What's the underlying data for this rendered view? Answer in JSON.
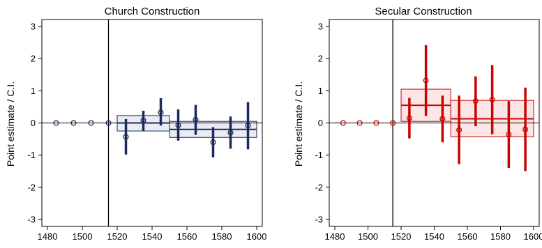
{
  "chart_data": [
    {
      "type": "scatter",
      "title": "Church Construction",
      "ylabel": "Point estimate / C.I.",
      "xlabel": "",
      "xlim": [
        1480,
        1600
      ],
      "ylim": [
        -3,
        3
      ],
      "x_ticks": [
        1480,
        1500,
        1520,
        1540,
        1560,
        1580,
        1600
      ],
      "y_ticks": [
        -3,
        -2,
        -1,
        0,
        1,
        2,
        3
      ],
      "vline": 1515,
      "hline": 0,
      "color": "#1b2a5a",
      "box_fill": "#e9ecf4",
      "points": [
        {
          "x": 1485,
          "y": 0.0,
          "lo": 0.0,
          "hi": 0.0
        },
        {
          "x": 1495,
          "y": 0.0,
          "lo": 0.0,
          "hi": 0.0
        },
        {
          "x": 1505,
          "y": 0.0,
          "lo": 0.0,
          "hi": 0.0
        },
        {
          "x": 1515,
          "y": 0.0,
          "lo": 0.0,
          "hi": 0.0
        },
        {
          "x": 1525,
          "y": -0.43,
          "lo": -0.98,
          "hi": 0.12
        },
        {
          "x": 1535,
          "y": 0.08,
          "lo": -0.25,
          "hi": 0.38
        },
        {
          "x": 1545,
          "y": 0.33,
          "lo": -0.08,
          "hi": 0.77
        },
        {
          "x": 1555,
          "y": -0.07,
          "lo": -0.55,
          "hi": 0.42
        },
        {
          "x": 1565,
          "y": 0.1,
          "lo": -0.37,
          "hi": 0.56
        },
        {
          "x": 1575,
          "y": -0.6,
          "lo": -1.07,
          "hi": -0.13
        },
        {
          "x": 1585,
          "y": -0.3,
          "lo": -0.8,
          "hi": 0.2
        },
        {
          "x": 1595,
          "y": -0.08,
          "lo": -0.82,
          "hi": 0.65
        }
      ],
      "pooled": [
        {
          "x0": 1520,
          "x1": 1550,
          "est": 0.0,
          "lo": -0.25,
          "hi": 0.23
        },
        {
          "x0": 1550,
          "x1": 1600,
          "est": -0.2,
          "lo": -0.45,
          "hi": 0.05
        }
      ]
    },
    {
      "type": "scatter",
      "title": "Secular Construction",
      "ylabel": "Point estimate / C.I.",
      "xlabel": "",
      "xlim": [
        1480,
        1600
      ],
      "ylim": [
        -3,
        3
      ],
      "x_ticks": [
        1480,
        1500,
        1520,
        1540,
        1560,
        1580,
        1600
      ],
      "y_ticks": [
        -3,
        -2,
        -1,
        0,
        1,
        2,
        3
      ],
      "vline": 1515,
      "hline": 0,
      "color": "#cc0000",
      "box_fill": "#fbe5e5",
      "points": [
        {
          "x": 1485,
          "y": 0.0,
          "lo": 0.0,
          "hi": 0.0
        },
        {
          "x": 1495,
          "y": 0.0,
          "lo": 0.0,
          "hi": 0.0
        },
        {
          "x": 1505,
          "y": 0.0,
          "lo": 0.0,
          "hi": 0.0
        },
        {
          "x": 1515,
          "y": 0.0,
          "lo": 0.0,
          "hi": 0.0
        },
        {
          "x": 1525,
          "y": 0.15,
          "lo": -0.48,
          "hi": 0.78
        },
        {
          "x": 1535,
          "y": 1.32,
          "lo": 0.22,
          "hi": 2.42
        },
        {
          "x": 1545,
          "y": 0.13,
          "lo": -0.6,
          "hi": 0.85
        },
        {
          "x": 1555,
          "y": -0.22,
          "lo": -1.28,
          "hi": 0.85
        },
        {
          "x": 1565,
          "y": 0.68,
          "lo": -0.1,
          "hi": 1.45
        },
        {
          "x": 1575,
          "y": 0.73,
          "lo": -0.35,
          "hi": 1.8
        },
        {
          "x": 1585,
          "y": -0.36,
          "lo": -1.4,
          "hi": 0.68
        },
        {
          "x": 1595,
          "y": -0.2,
          "lo": -1.5,
          "hi": 1.1
        }
      ],
      "pooled": [
        {
          "x0": 1520,
          "x1": 1550,
          "est": 0.55,
          "lo": 0.05,
          "hi": 1.05
        },
        {
          "x0": 1550,
          "x1": 1600,
          "est": 0.13,
          "lo": -0.43,
          "hi": 0.7
        }
      ]
    }
  ]
}
